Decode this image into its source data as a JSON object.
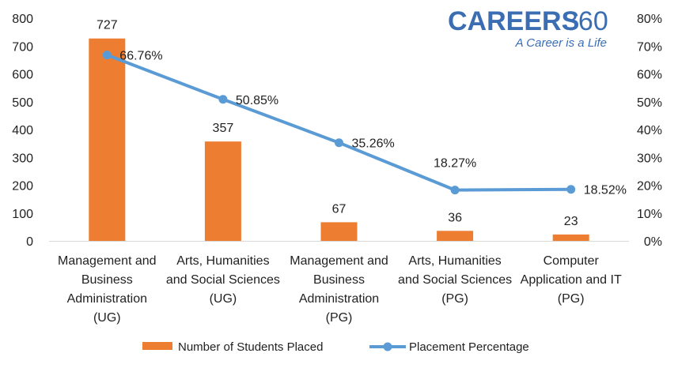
{
  "brand": {
    "name_left": "CAREERS",
    "name_right": "360",
    "tagline": "A Career is a Life",
    "color": "#3b6db3"
  },
  "chart_data": {
    "type": "bar",
    "categories": [
      [
        "Management and",
        "Business",
        "Administration",
        "(UG)"
      ],
      [
        "Arts, Humanities",
        "and Social Sciences",
        "(UG)"
      ],
      [
        "Management and",
        "Business",
        "Administration",
        "(PG)"
      ],
      [
        "Arts, Humanities",
        "and Social Sciences",
        "(PG)"
      ],
      [
        "Computer",
        "Application and IT",
        "(PG)"
      ]
    ],
    "series": [
      {
        "name": "Number of Students Placed",
        "type": "bar",
        "axis": "left",
        "color": "#ed7d31",
        "values": [
          727,
          357,
          67,
          36,
          23
        ],
        "labels": [
          "727",
          "357",
          "67",
          "36",
          "23"
        ]
      },
      {
        "name": "Placement Percentage",
        "type": "line",
        "axis": "right",
        "color": "#5b9bd5",
        "values": [
          66.76,
          50.85,
          35.26,
          18.27,
          18.52
        ],
        "labels": [
          "66.76%",
          "50.85%",
          "35.26%",
          "18.27%",
          "18.52%"
        ]
      }
    ],
    "ylim_left": [
      0,
      800
    ],
    "yticks_left": [
      "0",
      "100",
      "200",
      "300",
      "400",
      "500",
      "600",
      "700",
      "800"
    ],
    "ylim_right": [
      0,
      80
    ],
    "yticks_right": [
      "0%",
      "10%",
      "20%",
      "30%",
      "40%",
      "50%",
      "60%",
      "70%",
      "80%"
    ],
    "grid": false,
    "legend_position": "bottom"
  }
}
